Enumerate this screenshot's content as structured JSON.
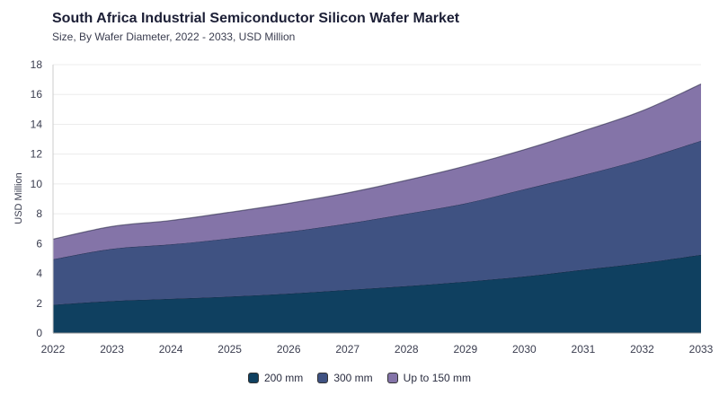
{
  "header": {
    "title": "South Africa Industrial Semiconductor Silicon Wafer Market",
    "subtitle": "Size, By Wafer Diameter, 2022 - 2033, USD Million"
  },
  "chart_data": {
    "type": "area",
    "stacked": true,
    "title": "South Africa Industrial Semiconductor Silicon Wafer Market",
    "subtitle": "Size, By Wafer Diameter, 2022 - 2033, USD Million",
    "xlabel": "",
    "ylabel": "USD Million",
    "x": [
      "2022",
      "2023",
      "2024",
      "2025",
      "2026",
      "2027",
      "2028",
      "2029",
      "2030",
      "2031",
      "2032",
      "2033"
    ],
    "ylim": [
      0,
      18
    ],
    "yticks": [
      0,
      2,
      4,
      6,
      8,
      10,
      12,
      14,
      16,
      18
    ],
    "grid": true,
    "legend_position": "bottom",
    "series": [
      {
        "name": "200 mm",
        "color": "#0f4060",
        "values": [
          1.9,
          2.15,
          2.3,
          2.45,
          2.65,
          2.9,
          3.15,
          3.45,
          3.8,
          4.25,
          4.7,
          5.25
        ]
      },
      {
        "name": "300 mm",
        "color": "#3f5282",
        "values": [
          3.05,
          3.5,
          3.65,
          3.9,
          4.15,
          4.45,
          4.85,
          5.25,
          5.85,
          6.35,
          6.95,
          7.65
        ]
      },
      {
        "name": "Up to 150 mm",
        "color": "#8474a8",
        "values": [
          1.35,
          1.5,
          1.6,
          1.75,
          1.9,
          2.05,
          2.25,
          2.5,
          2.65,
          2.95,
          3.25,
          3.8
        ]
      }
    ]
  }
}
